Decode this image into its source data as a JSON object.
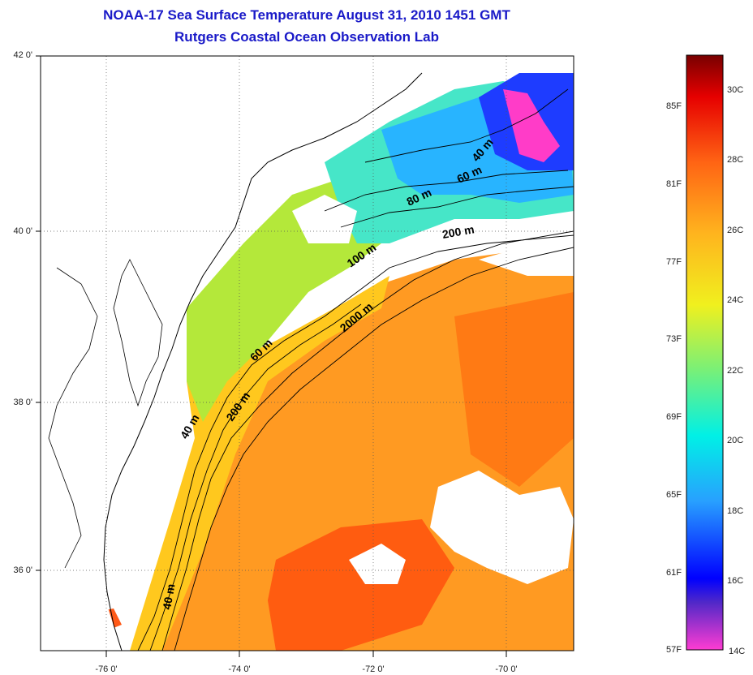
{
  "title": {
    "line1": "NOAA-17 Sea Surface Temperature August 31, 2010 1451 GMT",
    "line2": "Rutgers Coastal Ocean Observation Lab"
  },
  "map": {
    "lat_labels": [
      "42 0'",
      "40 0'",
      "38 0'",
      "36 0'"
    ],
    "lon_labels": [
      "-76 0'",
      "-74 0'",
      "-72 0'",
      "-70 0'"
    ],
    "isobath_labels": [
      "40 m",
      "60 m",
      "80 m",
      "200 m",
      "100 m",
      "2000 m",
      "60 m",
      "200 m",
      "40 m",
      "40 m"
    ],
    "water_colors": {
      "warm_deep": "#ff6a10",
      "gulf": "#ff9a20",
      "slope": "#ffc81e",
      "shelf_mid": "#b4e83a",
      "shelf_cool": "#46e6c8",
      "cool": "#28b4ff",
      "cold": "#1e3cff",
      "coldest": "#ff3cc8",
      "cloud_land": "#ffffff"
    }
  },
  "colorbar": {
    "fahrenheit": [
      "85F",
      "81F",
      "77F",
      "73F",
      "69F",
      "65F",
      "61F",
      "57F"
    ],
    "celsius": [
      "30C",
      "28C",
      "26C",
      "24C",
      "22C",
      "20C",
      "18C",
      "16C",
      "14C"
    ]
  }
}
